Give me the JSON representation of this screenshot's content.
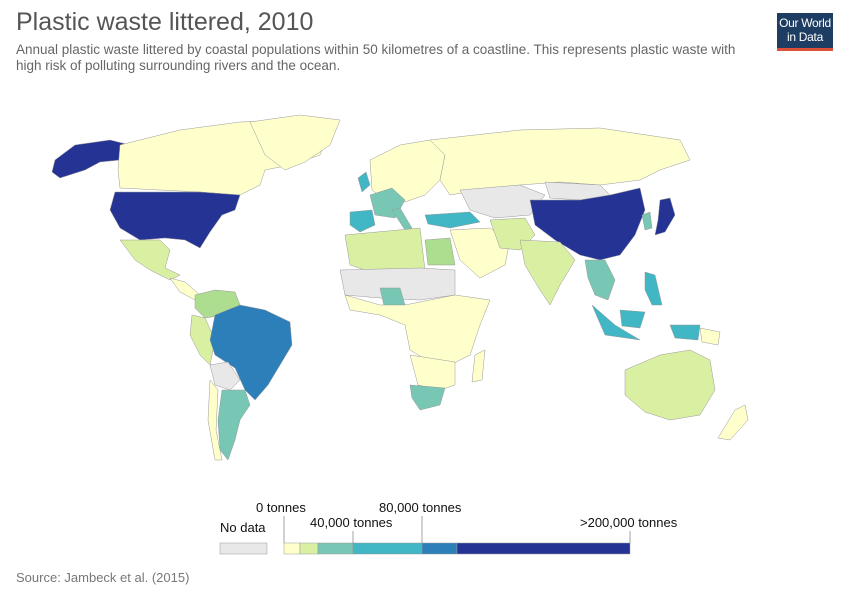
{
  "header": {
    "title": "Plastic waste littered, 2010",
    "subtitle": "Annual plastic waste littered by coastal populations within 50 kilometres of a coastline. This represents plastic waste with high risk of polluting surrounding rivers and the ocean."
  },
  "logo": {
    "line1": "Our World",
    "line2": "in Data"
  },
  "legend": {
    "no_data_label": "No data",
    "labels": [
      "0 tonnes",
      "40,000 tonnes",
      "80,000 tonnes",
      ">200,000 tonnes"
    ],
    "colors": [
      "#ffffcc",
      "#d9f0a3",
      "#addd8e",
      "#78c6b4",
      "#41b6c4",
      "#2c7fb8",
      "#253494"
    ],
    "no_data_color": "#e8e8e8"
  },
  "source": "Source: Jambeck et al. (2015)",
  "map_data": {
    "regions": [
      {
        "name": "United States",
        "color": "#253494"
      },
      {
        "name": "China",
        "color": "#253494"
      },
      {
        "name": "Japan",
        "color": "#253494"
      },
      {
        "name": "Brazil",
        "color": "#2c7fb8"
      },
      {
        "name": "Indonesia",
        "color": "#41b6c4"
      },
      {
        "name": "Turkey",
        "color": "#41b6c4"
      },
      {
        "name": "Spain",
        "color": "#41b6c4"
      },
      {
        "name": "Argentina",
        "color": "#78c6b4"
      },
      {
        "name": "South Africa",
        "color": "#78c6b4"
      },
      {
        "name": "Nigeria",
        "color": "#78c6b4"
      },
      {
        "name": "Egypt",
        "color": "#78c6b4"
      },
      {
        "name": "India",
        "color": "#d9f0a3"
      },
      {
        "name": "Australia",
        "color": "#d9f0a3"
      },
      {
        "name": "Canada",
        "color": "#ffffcc"
      },
      {
        "name": "Russia",
        "color": "#ffffcc"
      },
      {
        "name": "Mongolia",
        "color": "#e8e8e8"
      }
    ]
  }
}
